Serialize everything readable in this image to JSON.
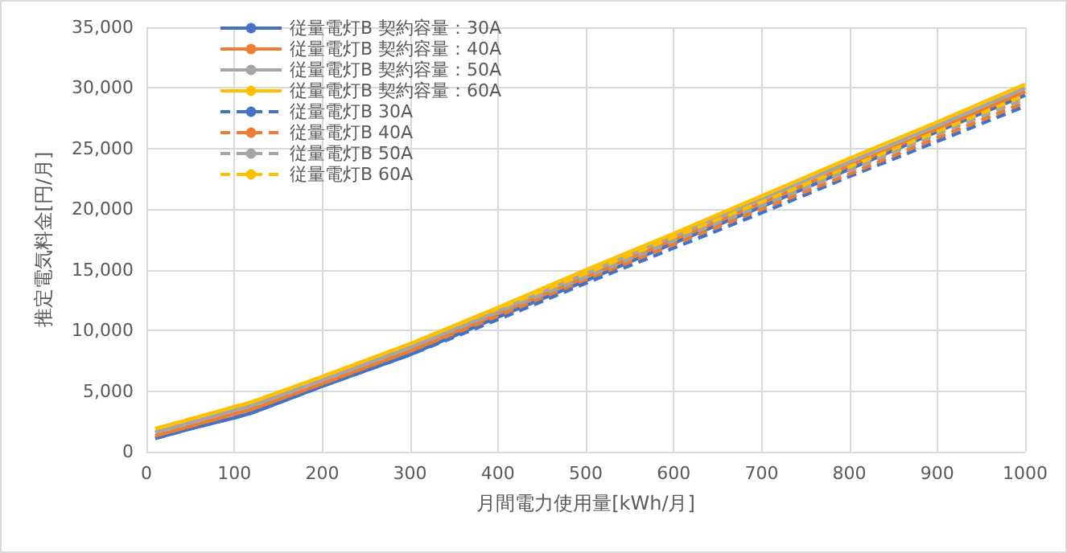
{
  "chart_data": {
    "type": "line",
    "xlabel": "月間電力使用量[kWh/月]",
    "ylabel": "推定電気料金[円/月]",
    "x": [
      10,
      50,
      100,
      120,
      200,
      300,
      400,
      500,
      600,
      700,
      800,
      900,
      1000
    ],
    "xlim": [
      0,
      1000
    ],
    "xticks": [
      0,
      100,
      200,
      300,
      400,
      500,
      600,
      700,
      800,
      900,
      {
        "value": 1000,
        "label": "1000"
      }
    ],
    "ylim": [
      0,
      35000
    ],
    "yticks": [
      0,
      {
        "value": 5000,
        "label": "5,000"
      },
      {
        "value": 10000,
        "label": "10,000"
      },
      {
        "value": 15000,
        "label": "15,000"
      },
      {
        "value": 20000,
        "label": "20,000"
      },
      {
        "value": 25000,
        "label": "25,000"
      },
      {
        "value": 30000,
        "label": "30,000"
      },
      {
        "value": 35000,
        "label": "35,000"
      }
    ],
    "grid": true,
    "legend": "top left",
    "marker": "none",
    "series": [
      {
        "name": "従量電灯B 契約容量：30A",
        "color": "#4472c4",
        "line_style": "solid",
        "values": [
          1100,
          1900,
          2800,
          3200,
          5400,
          8000,
          11100,
          14100,
          17200,
          20200,
          23300,
          26400,
          29400
        ]
      },
      {
        "name": "従量電灯B 契約容量：40A",
        "color": "#ed7d31",
        "line_style": "solid",
        "values": [
          1300,
          2100,
          3100,
          3500,
          5600,
          8300,
          11400,
          14400,
          17500,
          20500,
          23600,
          26600,
          29700
        ]
      },
      {
        "name": "従量電灯B 契約容量：50A",
        "color": "#a5a5a5",
        "line_style": "solid",
        "values": [
          1600,
          2400,
          3400,
          3800,
          5900,
          8600,
          11600,
          14700,
          17800,
          20800,
          23900,
          26900,
          30000
        ]
      },
      {
        "name": "従量電灯B 契約容量：60A",
        "color": "#ffc000",
        "line_style": "solid",
        "values": [
          1900,
          2700,
          3700,
          4100,
          6200,
          8900,
          11900,
          15000,
          18000,
          21100,
          24200,
          27200,
          30300
        ]
      },
      {
        "name": "従量電灯B 30A",
        "color": "#4472c4",
        "line_style": "dashed",
        "values": [
          1100,
          1900,
          2800,
          3200,
          5400,
          8000,
          10900,
          13900,
          16800,
          19700,
          22700,
          25600,
          28500
        ]
      },
      {
        "name": "従量電灯B 40A",
        "color": "#ed7d31",
        "line_style": "dashed",
        "values": [
          1300,
          2100,
          3100,
          3500,
          5600,
          8300,
          11200,
          14200,
          17100,
          20000,
          22900,
          25900,
          28800
        ]
      },
      {
        "name": "従量電灯B 50A",
        "color": "#a5a5a5",
        "line_style": "dashed",
        "values": [
          1600,
          2400,
          3400,
          3800,
          5900,
          8600,
          11500,
          14400,
          17400,
          20300,
          23200,
          26200,
          29100
        ]
      },
      {
        "name": "従量電灯B 60A",
        "color": "#ffc000",
        "line_style": "dashed",
        "values": [
          1900,
          2700,
          3700,
          4100,
          6200,
          8900,
          11800,
          14700,
          17700,
          20600,
          23500,
          26400,
          29400
        ]
      }
    ]
  }
}
